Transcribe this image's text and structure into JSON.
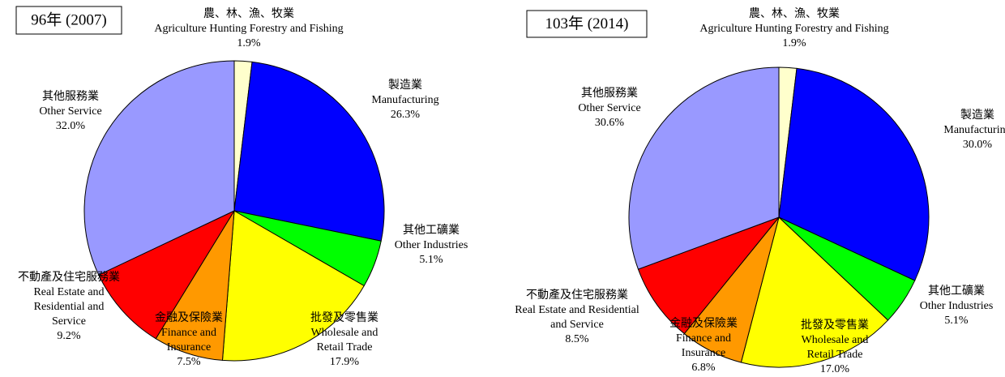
{
  "chart_data": [
    {
      "type": "pie",
      "title": "96年 (2007)",
      "categories": [
        {
          "zh": "農、林、漁、牧業",
          "en": [
            "Agriculture Hunting Forestry and Fishing"
          ]
        },
        {
          "zh": "製造業",
          "en": [
            "Manufacturing"
          ]
        },
        {
          "zh": "其他工礦業",
          "en": [
            "Other Industries"
          ]
        },
        {
          "zh": "批發及零售業",
          "en": [
            "Wholesale and",
            "Retail Trade"
          ]
        },
        {
          "zh": "金融及保險業",
          "en": [
            "Finance and",
            "Insurance"
          ]
        },
        {
          "zh": "不動產及住宅服務業",
          "en": [
            "Real Estate and",
            "Residential and",
            "Service"
          ]
        },
        {
          "zh": "其他服務業",
          "en": [
            "Other Service"
          ]
        }
      ],
      "values": [
        1.9,
        26.3,
        5.1,
        17.9,
        7.5,
        9.2,
        32.0
      ],
      "value_labels": [
        "1.9%",
        "26.3%",
        "5.1%",
        "17.9%",
        "7.5%",
        "9.2%",
        "32.0%"
      ],
      "colors": [
        "#ffffcc",
        "#0000ff",
        "#00ff00",
        "#ffff00",
        "#ff9900",
        "#ff0000",
        "#9999ff"
      ]
    },
    {
      "type": "pie",
      "title": "103年 (2014)",
      "categories": [
        {
          "zh": "農、林、漁、牧業",
          "en": [
            "Agriculture Hunting Forestry and Fishing"
          ]
        },
        {
          "zh": "製造業",
          "en": [
            "Manufacturing"
          ]
        },
        {
          "zh": "其他工礦業",
          "en": [
            "Other Industries"
          ]
        },
        {
          "zh": "批發及零售業",
          "en": [
            "Wholesale and",
            "Retail Trade"
          ]
        },
        {
          "zh": "金融及保險業",
          "en": [
            "Finance and",
            "Insurance"
          ]
        },
        {
          "zh": "不動產及住宅服務業",
          "en": [
            "Real Estate and Residential",
            "and Service"
          ]
        },
        {
          "zh": "其他服務業",
          "en": [
            "Other Service"
          ]
        }
      ],
      "values": [
        1.9,
        30.0,
        5.1,
        17.0,
        6.8,
        8.5,
        30.6
      ],
      "value_labels": [
        "1.9%",
        "30.0%",
        "5.1%",
        "17.0%",
        "6.8%",
        "8.5%",
        "30.6%"
      ],
      "colors": [
        "#ffffcc",
        "#0000ff",
        "#00ff00",
        "#ffff00",
        "#ff9900",
        "#ff0000",
        "#9999ff"
      ]
    }
  ]
}
